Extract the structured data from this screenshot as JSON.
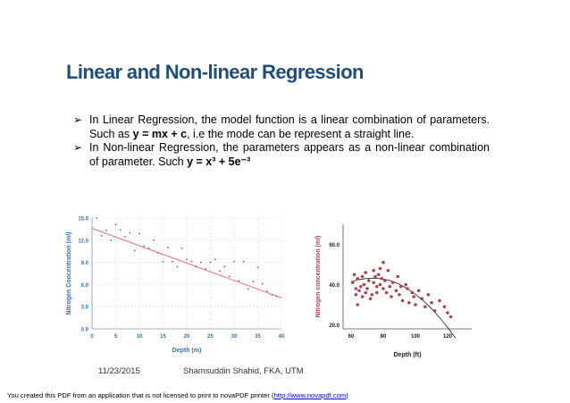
{
  "slide": {
    "title": "Linear and Non-linear Regression",
    "bullets": [
      {
        "pre": "In Linear Regression, the model function is a linear combination of parameters. Such as ",
        "eq": "y = mx + c",
        "post": ", i.e the mode can be represent a straight line."
      },
      {
        "pre": "In Non-linear Regression, the parameters appears as a non-linear combination of parameter. Such ",
        "eq": "y = x³ + 5e⁻³",
        "post": ""
      }
    ],
    "footer_date": "11/23/2015",
    "footer_author": "Shamsuddin Shahid, FKA, UTM"
  },
  "notice": {
    "pre": "You created this PDF from an application that is not licensed to print to novaPDF printer (",
    "link": "http://www.novapdf.com",
    "post": ")"
  },
  "chart_data": [
    {
      "type": "scatter",
      "title": "",
      "xlabel": "Depth (m)",
      "ylabel": "Nitrogen Concentration (ml)",
      "xlim": [
        0,
        40
      ],
      "ylim": [
        0,
        15
      ],
      "xticks": [
        "0",
        "5",
        "10",
        "15",
        "20",
        "25",
        "30",
        "35",
        "40"
      ],
      "yticks": [
        "0.0",
        "3.0",
        "6.0",
        "9.0",
        "12.0",
        "15.0"
      ],
      "grid": true,
      "colors": {
        "points": "#5a6f78",
        "fit": "#e8636f",
        "axis_text": "#3b6fb6"
      },
      "x": [
        1,
        2,
        3,
        4,
        5,
        6,
        7,
        8,
        9,
        10,
        11,
        12,
        13,
        14,
        15,
        16,
        17,
        18,
        19,
        20,
        21,
        22,
        23,
        24,
        25,
        26,
        27,
        28,
        29,
        30,
        31,
        32,
        33,
        34,
        35,
        36,
        37,
        38,
        39
      ],
      "y": [
        15.0,
        12.6,
        13.3,
        12.0,
        14.1,
        13.4,
        12.5,
        13.0,
        10.6,
        12.9,
        11.2,
        10.9,
        12.0,
        10.3,
        9.1,
        11.0,
        9.1,
        8.4,
        10.9,
        9.4,
        9.1,
        8.4,
        9.0,
        8.1,
        9.0,
        9.4,
        7.8,
        8.4,
        7.1,
        9.1,
        6.5,
        9.1,
        5.4,
        6.4,
        8.3,
        6.1,
        5.1,
        4.6,
        4.4
      ],
      "fit": {
        "x": [
          0,
          40
        ],
        "y": [
          13.6,
          4.2
        ]
      }
    },
    {
      "type": "scatter",
      "title": "",
      "xlabel": "Depth (ft)",
      "ylabel": "Nitrogen concentration (ml)",
      "xlim": [
        55,
        135
      ],
      "ylim": [
        18,
        70
      ],
      "xticks": [
        "60",
        "80",
        "100",
        "120"
      ],
      "yticks": [
        "20.0",
        "40.0",
        "60.0"
      ],
      "grid": false,
      "colors": {
        "points": "#a8454e",
        "fit": "#303030",
        "axis_text": "#222222"
      },
      "x": [
        61,
        62,
        63,
        63,
        64,
        64,
        65,
        66,
        67,
        67,
        68,
        69,
        69,
        70,
        71,
        72,
        73,
        74,
        74,
        75,
        76,
        76,
        77,
        78,
        78,
        79,
        80,
        80,
        81,
        82,
        83,
        84,
        85,
        86,
        88,
        89,
        90,
        91,
        92,
        94,
        95,
        96,
        98,
        99,
        100,
        102,
        104,
        106,
        108,
        110,
        112,
        115,
        118,
        120,
        122
      ],
      "y": [
        41,
        45,
        38,
        35,
        43,
        30,
        37,
        39,
        44,
        34,
        40,
        36,
        46,
        38,
        42,
        33,
        35,
        41,
        47,
        44,
        39,
        36,
        45,
        48,
        40,
        43,
        51,
        38,
        42,
        36,
        47,
        39,
        34,
        41,
        37,
        44,
        35,
        39,
        32,
        40,
        38,
        31,
        36,
        34,
        30,
        37,
        33,
        29,
        35,
        31,
        27,
        32,
        29,
        26,
        24
      ],
      "fit": {
        "x": [
          60,
          65,
          70,
          75,
          80,
          85,
          90,
          95,
          100,
          105,
          110,
          115,
          120,
          125
        ],
        "y": [
          41.5,
          42.5,
          43.1,
          43.2,
          42.8,
          41.8,
          40.2,
          38.0,
          35.2,
          31.9,
          28.0,
          23.6,
          18.7,
          13.3
        ]
      }
    }
  ]
}
